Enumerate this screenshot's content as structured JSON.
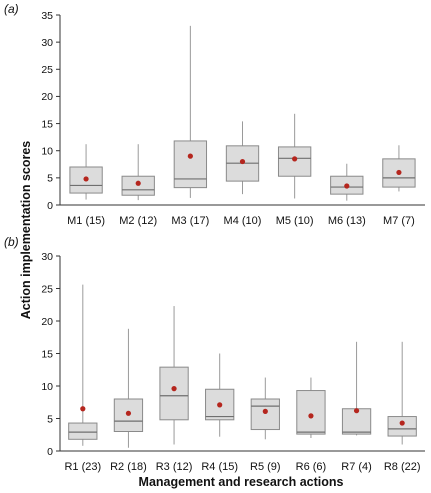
{
  "ylabel": "Action implementation scores",
  "xlabel": "Management and research actions",
  "colors": {
    "box_fill": "#dcdcdc",
    "box_stroke": "#8a8a8a",
    "whisker": "#9a9a9a",
    "median": "#6f6f6f",
    "mean_dot": "#b5261e",
    "axis": "#333333"
  },
  "chart_data": [
    {
      "type": "box",
      "panel_label": "(a)",
      "ylim": [
        0,
        35
      ],
      "yticks": [
        0,
        5,
        10,
        15,
        20,
        25,
        30,
        35
      ],
      "categories": [
        "M1 (15)",
        "M2 (12)",
        "M3 (17)",
        "M4 (10)",
        "M5 (10)",
        "M6 (13)",
        "M7 (7)"
      ],
      "whisker_low": [
        1.0,
        0.9,
        1.3,
        2.0,
        1.2,
        0.8,
        2.5
      ],
      "q1": [
        2.2,
        1.8,
        3.2,
        4.4,
        5.3,
        2.0,
        3.3
      ],
      "median": [
        3.6,
        2.8,
        4.8,
        7.7,
        8.6,
        3.3,
        5.0
      ],
      "q3": [
        7.0,
        5.3,
        11.8,
        10.9,
        10.7,
        5.3,
        8.5
      ],
      "whisker_high": [
        11.2,
        11.2,
        33.0,
        15.4,
        16.8,
        7.6,
        11.0
      ],
      "mean": [
        4.8,
        4.0,
        9.0,
        8.0,
        8.5,
        3.5,
        6.0
      ]
    },
    {
      "type": "box",
      "panel_label": "(b)",
      "ylim": [
        0,
        30
      ],
      "yticks": [
        0,
        5,
        10,
        15,
        20,
        25,
        30
      ],
      "categories": [
        "R1 (23)",
        "R2 (18)",
        "R3 (12)",
        "R4 (15)",
        "R5 (9)",
        "R6 (6)",
        "R7 (4)",
        "R8 (22)"
      ],
      "whisker_low": [
        0.8,
        0.5,
        1.0,
        2.2,
        1.8,
        2.0,
        2.4,
        1.0
      ],
      "q1": [
        1.8,
        3.0,
        4.8,
        4.8,
        3.3,
        2.6,
        2.6,
        2.3
      ],
      "median": [
        2.9,
        4.6,
        8.5,
        5.3,
        6.9,
        2.9,
        2.9,
        3.4
      ],
      "q3": [
        4.3,
        8.0,
        12.9,
        9.5,
        8.0,
        9.3,
        6.5,
        5.3
      ],
      "whisker_high": [
        25.6,
        18.8,
        22.3,
        15.0,
        11.3,
        11.3,
        16.8,
        16.8
      ],
      "mean": [
        6.5,
        5.8,
        9.6,
        7.1,
        6.1,
        5.4,
        6.2,
        4.3
      ]
    }
  ]
}
